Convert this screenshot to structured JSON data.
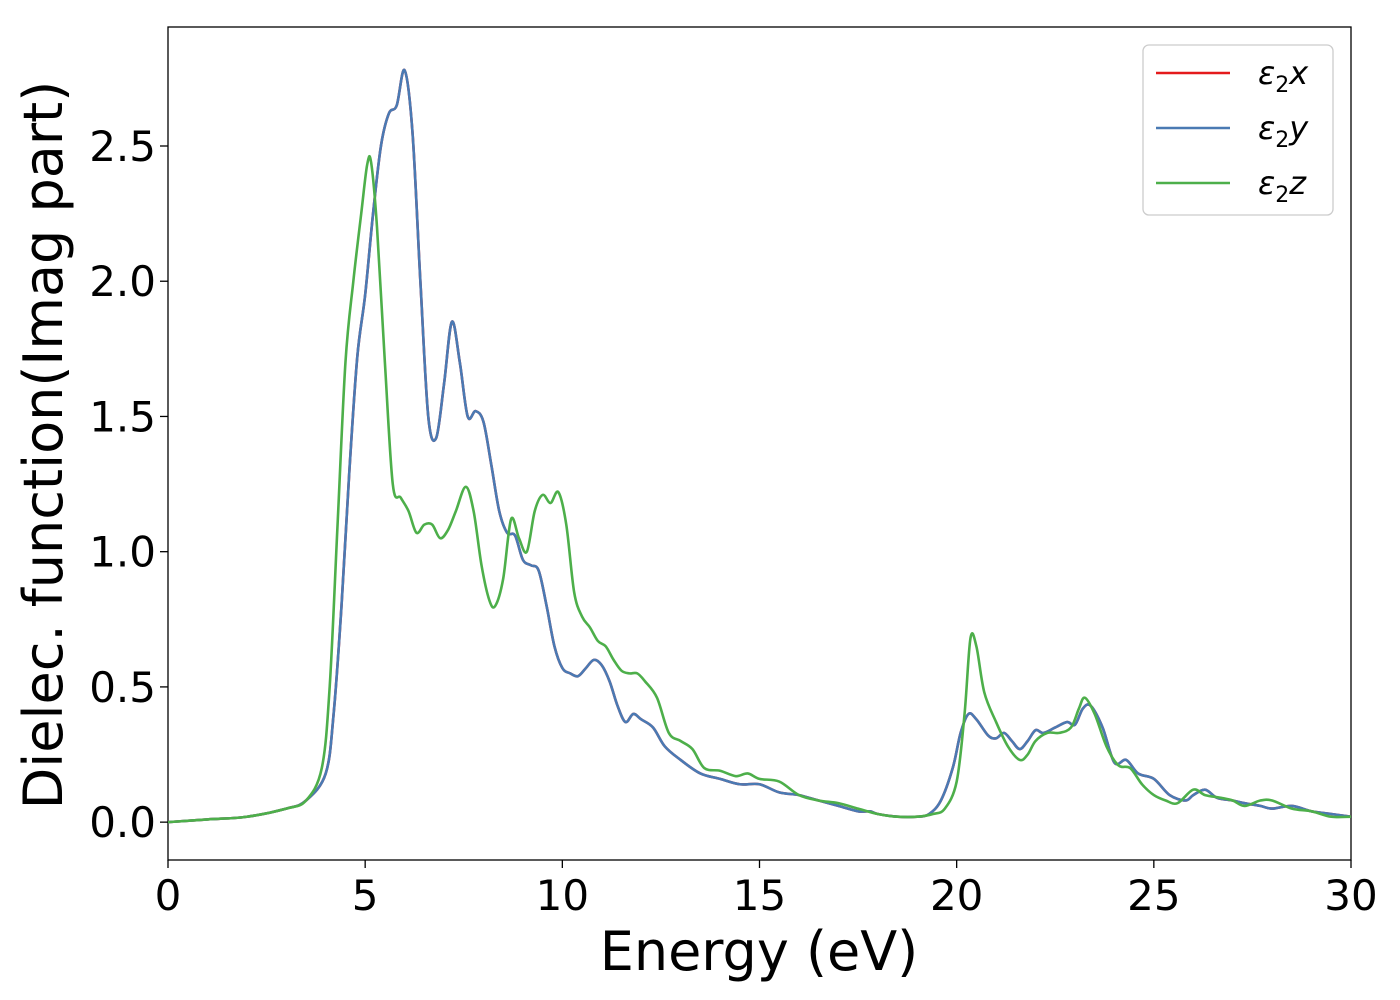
{
  "chart_data": {
    "type": "line",
    "title": "",
    "xlabel": "Energy (eV)",
    "ylabel": "Dielec. function(Imag part)",
    "xlim": [
      0,
      30
    ],
    "ylim": [
      -0.14,
      2.94
    ],
    "xticks": [
      0,
      5,
      10,
      15,
      20,
      25,
      30
    ],
    "xtick_labels": [
      "0",
      "5",
      "10",
      "15",
      "20",
      "25",
      "30"
    ],
    "yticks": [
      0.0,
      0.5,
      1.0,
      1.5,
      2.0,
      2.5
    ],
    "ytick_labels": [
      "0.0",
      "0.5",
      "1.0",
      "1.5",
      "2.0",
      "2.5"
    ],
    "grid": false,
    "legend_position": "top-right",
    "series": [
      {
        "name": "ε2x",
        "legend_main": "ε",
        "legend_sub": "2",
        "legend_var": "x",
        "color": "#e41a1c",
        "x": [
          0,
          1,
          2,
          3,
          3.5,
          4,
          4.2,
          4.4,
          4.6,
          4.8,
          5.0,
          5.2,
          5.4,
          5.6,
          5.8,
          6.0,
          6.2,
          6.4,
          6.6,
          6.8,
          7.0,
          7.2,
          7.4,
          7.6,
          7.8,
          8.0,
          8.2,
          8.4,
          8.6,
          8.8,
          9.0,
          9.2,
          9.4,
          9.6,
          9.8,
          10.0,
          10.2,
          10.4,
          10.6,
          10.8,
          11.0,
          11.2,
          11.4,
          11.6,
          11.8,
          12.0,
          12.3,
          12.6,
          13.0,
          13.5,
          14.0,
          14.5,
          15.0,
          15.5,
          16.0,
          16.5,
          17.0,
          17.5,
          17.8,
          18.0,
          18.5,
          19.0,
          19.3,
          19.6,
          19.9,
          20.1,
          20.3,
          20.5,
          20.8,
          21.0,
          21.2,
          21.4,
          21.6,
          21.8,
          22.0,
          22.2,
          22.5,
          22.8,
          23.0,
          23.2,
          23.4,
          23.7,
          24.0,
          24.3,
          24.6,
          25.0,
          25.4,
          25.8,
          26.0,
          26.3,
          26.6,
          27.0,
          27.3,
          27.7,
          28.0,
          28.5,
          29.0,
          29.5,
          30.0
        ],
        "y": [
          0.0,
          0.01,
          0.02,
          0.05,
          0.08,
          0.18,
          0.4,
          0.8,
          1.3,
          1.72,
          1.95,
          2.25,
          2.5,
          2.62,
          2.65,
          2.78,
          2.55,
          2.0,
          1.5,
          1.42,
          1.62,
          1.85,
          1.7,
          1.5,
          1.52,
          1.48,
          1.32,
          1.15,
          1.07,
          1.06,
          0.97,
          0.95,
          0.93,
          0.8,
          0.65,
          0.57,
          0.55,
          0.54,
          0.57,
          0.6,
          0.58,
          0.52,
          0.43,
          0.37,
          0.4,
          0.38,
          0.35,
          0.28,
          0.23,
          0.18,
          0.16,
          0.14,
          0.14,
          0.11,
          0.1,
          0.08,
          0.06,
          0.04,
          0.04,
          0.03,
          0.02,
          0.02,
          0.03,
          0.08,
          0.2,
          0.33,
          0.4,
          0.38,
          0.32,
          0.31,
          0.33,
          0.3,
          0.27,
          0.3,
          0.34,
          0.33,
          0.35,
          0.37,
          0.36,
          0.42,
          0.43,
          0.35,
          0.22,
          0.23,
          0.18,
          0.16,
          0.1,
          0.08,
          0.1,
          0.12,
          0.09,
          0.08,
          0.07,
          0.06,
          0.05,
          0.06,
          0.04,
          0.03,
          0.02
        ]
      },
      {
        "name": "ε2y",
        "legend_main": "ε",
        "legend_sub": "2",
        "legend_var": "y",
        "color": "#4a7ab3",
        "x": [
          0,
          1,
          2,
          3,
          3.5,
          4,
          4.2,
          4.4,
          4.6,
          4.8,
          5.0,
          5.2,
          5.4,
          5.6,
          5.8,
          6.0,
          6.2,
          6.4,
          6.6,
          6.8,
          7.0,
          7.2,
          7.4,
          7.6,
          7.8,
          8.0,
          8.2,
          8.4,
          8.6,
          8.8,
          9.0,
          9.2,
          9.4,
          9.6,
          9.8,
          10.0,
          10.2,
          10.4,
          10.6,
          10.8,
          11.0,
          11.2,
          11.4,
          11.6,
          11.8,
          12.0,
          12.3,
          12.6,
          13.0,
          13.5,
          14.0,
          14.5,
          15.0,
          15.5,
          16.0,
          16.5,
          17.0,
          17.5,
          17.8,
          18.0,
          18.5,
          19.0,
          19.3,
          19.6,
          19.9,
          20.1,
          20.3,
          20.5,
          20.8,
          21.0,
          21.2,
          21.4,
          21.6,
          21.8,
          22.0,
          22.2,
          22.5,
          22.8,
          23.0,
          23.2,
          23.4,
          23.7,
          24.0,
          24.3,
          24.6,
          25.0,
          25.4,
          25.8,
          26.0,
          26.3,
          26.6,
          27.0,
          27.3,
          27.7,
          28.0,
          28.5,
          29.0,
          29.5,
          30.0
        ],
        "y": [
          0.0,
          0.01,
          0.02,
          0.05,
          0.08,
          0.18,
          0.4,
          0.8,
          1.3,
          1.72,
          1.95,
          2.25,
          2.5,
          2.62,
          2.65,
          2.78,
          2.55,
          2.0,
          1.5,
          1.42,
          1.62,
          1.85,
          1.7,
          1.5,
          1.52,
          1.48,
          1.32,
          1.15,
          1.07,
          1.06,
          0.97,
          0.95,
          0.93,
          0.8,
          0.65,
          0.57,
          0.55,
          0.54,
          0.57,
          0.6,
          0.58,
          0.52,
          0.43,
          0.37,
          0.4,
          0.38,
          0.35,
          0.28,
          0.23,
          0.18,
          0.16,
          0.14,
          0.14,
          0.11,
          0.1,
          0.08,
          0.06,
          0.04,
          0.04,
          0.03,
          0.02,
          0.02,
          0.03,
          0.08,
          0.2,
          0.33,
          0.4,
          0.38,
          0.32,
          0.31,
          0.33,
          0.3,
          0.27,
          0.3,
          0.34,
          0.33,
          0.35,
          0.37,
          0.36,
          0.42,
          0.43,
          0.35,
          0.22,
          0.23,
          0.18,
          0.16,
          0.1,
          0.08,
          0.1,
          0.12,
          0.09,
          0.08,
          0.07,
          0.06,
          0.05,
          0.06,
          0.04,
          0.03,
          0.02
        ]
      },
      {
        "name": "ε2z",
        "legend_main": "ε",
        "legend_sub": "2",
        "legend_var": "z",
        "color": "#4daf4a",
        "x": [
          0,
          1,
          2,
          3,
          3.5,
          3.9,
          4.1,
          4.3,
          4.5,
          4.7,
          4.9,
          5.05,
          5.15,
          5.3,
          5.5,
          5.7,
          5.9,
          6.1,
          6.3,
          6.5,
          6.7,
          6.9,
          7.1,
          7.3,
          7.55,
          7.75,
          7.95,
          8.15,
          8.3,
          8.5,
          8.7,
          8.9,
          9.1,
          9.3,
          9.5,
          9.7,
          9.9,
          10.1,
          10.3,
          10.5,
          10.7,
          10.9,
          11.1,
          11.3,
          11.5,
          11.7,
          11.9,
          12.1,
          12.4,
          12.7,
          13.0,
          13.3,
          13.6,
          14.0,
          14.4,
          14.7,
          15.0,
          15.5,
          16.0,
          16.5,
          17.0,
          17.5,
          18.0,
          18.5,
          19.0,
          19.4,
          19.7,
          20.0,
          20.2,
          20.35,
          20.5,
          20.7,
          21.0,
          21.3,
          21.6,
          21.8,
          22.0,
          22.3,
          22.6,
          22.9,
          23.1,
          23.25,
          23.5,
          23.8,
          24.1,
          24.4,
          24.7,
          25.0,
          25.3,
          25.6,
          26.0,
          26.3,
          26.7,
          27.0,
          27.3,
          27.7,
          28.0,
          28.5,
          29.0,
          29.5,
          30.0
        ],
        "y": [
          0.0,
          0.01,
          0.02,
          0.05,
          0.08,
          0.2,
          0.5,
          1.1,
          1.7,
          2.0,
          2.25,
          2.43,
          2.44,
          2.2,
          1.7,
          1.25,
          1.2,
          1.15,
          1.07,
          1.1,
          1.1,
          1.05,
          1.08,
          1.15,
          1.24,
          1.15,
          0.95,
          0.82,
          0.8,
          0.9,
          1.12,
          1.05,
          1.0,
          1.15,
          1.21,
          1.18,
          1.22,
          1.1,
          0.85,
          0.76,
          0.72,
          0.67,
          0.65,
          0.6,
          0.56,
          0.55,
          0.55,
          0.52,
          0.46,
          0.33,
          0.3,
          0.27,
          0.2,
          0.19,
          0.17,
          0.18,
          0.16,
          0.15,
          0.1,
          0.08,
          0.07,
          0.05,
          0.03,
          0.02,
          0.02,
          0.03,
          0.05,
          0.15,
          0.4,
          0.68,
          0.65,
          0.48,
          0.37,
          0.28,
          0.23,
          0.25,
          0.3,
          0.33,
          0.33,
          0.35,
          0.42,
          0.46,
          0.4,
          0.28,
          0.21,
          0.2,
          0.14,
          0.1,
          0.08,
          0.07,
          0.12,
          0.1,
          0.09,
          0.08,
          0.06,
          0.08,
          0.08,
          0.05,
          0.04,
          0.02,
          0.02
        ]
      }
    ]
  }
}
